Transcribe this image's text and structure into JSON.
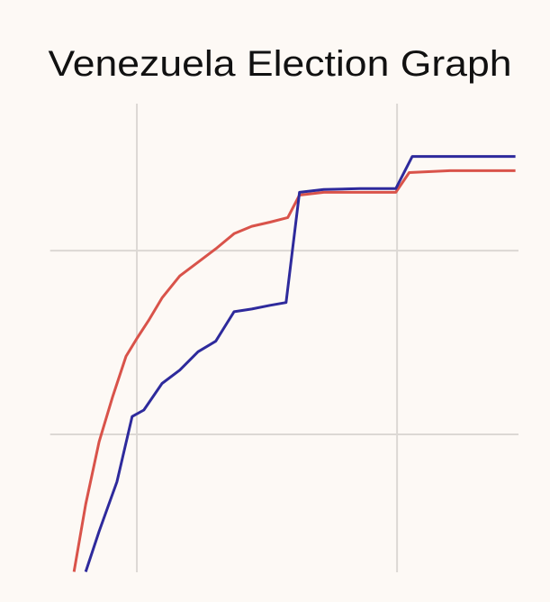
{
  "chart_data": {
    "type": "line",
    "title": "Venezuela Election Graph",
    "xlim": [
      0,
      108
    ],
    "xticks": [
      20,
      80
    ],
    "ylim": [
      10,
      112
    ],
    "yticks": [
      40,
      80
    ],
    "grid": true,
    "series": [
      {
        "color": "#d9534a",
        "x": [
          5.5,
          8.2,
          11.3,
          14.4,
          17.5,
          20,
          22.7,
          25.8,
          29.9,
          34.1,
          38.2,
          42.4,
          46.5,
          50.7,
          54.8,
          57.5,
          63.1,
          71.4,
          79.7,
          82.8,
          92.2,
          107.3
        ],
        "values": [
          10.1,
          24.8,
          38.4,
          48.2,
          57.0,
          60.9,
          64.8,
          69.7,
          74.5,
          77.5,
          80.4,
          83.7,
          85.3,
          86.2,
          87.2,
          92.1,
          92.7,
          92.7,
          92.7,
          97.0,
          97.4,
          97.4
        ]
      },
      {
        "color": "#2e2a9c",
        "x": [
          8.2,
          11.3,
          15.4,
          18.9,
          21.6,
          25.8,
          29.9,
          34.1,
          38.2,
          42.4,
          46.5,
          50.7,
          54.4,
          57.5,
          63.1,
          71.4,
          79.7,
          83.5,
          92.2,
          107.3
        ],
        "values": [
          10.1,
          18.9,
          29.7,
          43.9,
          45.3,
          51.1,
          54.0,
          58.0,
          60.3,
          66.7,
          67.3,
          68.1,
          68.7,
          92.7,
          93.3,
          93.5,
          93.5,
          100.5,
          100.5,
          100.5
        ]
      }
    ]
  }
}
